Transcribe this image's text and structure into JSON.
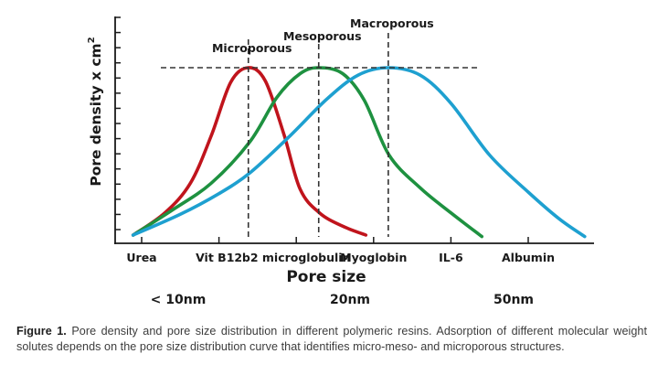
{
  "chart_data": {
    "type": "line",
    "title": "",
    "xlabel": "Pore size",
    "ylabel": "Pore density x cm",
    "ylabel_superscript": "2",
    "categories": [
      "Urea",
      "Vit B12",
      "b2 microglobulin",
      "Myoglobin",
      "IL-6",
      "Albumin"
    ],
    "size_labels": [
      "< 10nm",
      "20nm",
      "50nm"
    ],
    "y_tick_count": 15,
    "ylim": [
      0,
      15
    ],
    "grid": false,
    "annotations": [
      {
        "text": "Microporous",
        "x": 1.38
      },
      {
        "text": "Mesoporous",
        "x": 2.29
      },
      {
        "text": "Macroporous",
        "x": 3.19
      }
    ],
    "peak_level": 11.8,
    "series": [
      {
        "name": "Microporous",
        "color": "#c0141c",
        "x": [
          -0.11,
          0.3,
          0.63,
          0.9,
          1.15,
          1.38,
          1.6,
          1.84,
          2.05,
          2.3,
          2.6,
          2.9
        ],
        "y": [
          0.5,
          2.0,
          4.0,
          7.2,
          10.8,
          11.8,
          10.9,
          7.3,
          3.6,
          2.0,
          1.1,
          0.5
        ]
      },
      {
        "name": "Mesoporous",
        "color": "#1e9140",
        "x": [
          -0.11,
          0.4,
          0.9,
          1.4,
          1.75,
          2.05,
          2.29,
          2.6,
          2.88,
          3.2,
          3.6,
          4.0,
          4.4
        ],
        "y": [
          0.5,
          2.2,
          4.0,
          6.8,
          9.8,
          11.4,
          11.8,
          11.4,
          9.6,
          5.9,
          3.7,
          2.0,
          0.4
        ]
      },
      {
        "name": "Macroporous",
        "color": "#1ea0d0",
        "x": [
          -0.11,
          0.5,
          1.0,
          1.4,
          1.9,
          2.4,
          2.8,
          3.19,
          3.6,
          4.0,
          4.5,
          5.0,
          5.4,
          5.73
        ],
        "y": [
          0.5,
          1.9,
          3.3,
          4.7,
          7.1,
          9.7,
          11.3,
          11.8,
          11.3,
          9.4,
          5.9,
          3.4,
          1.6,
          0.4
        ]
      }
    ]
  },
  "caption": {
    "label": "Figure 1.",
    "text": " Pore density and pore size distribution in different polymeric resins. Adsorption of different molecular weight solutes depends on the pore size distribution curve that identifies micro-meso- and microporous structures."
  }
}
